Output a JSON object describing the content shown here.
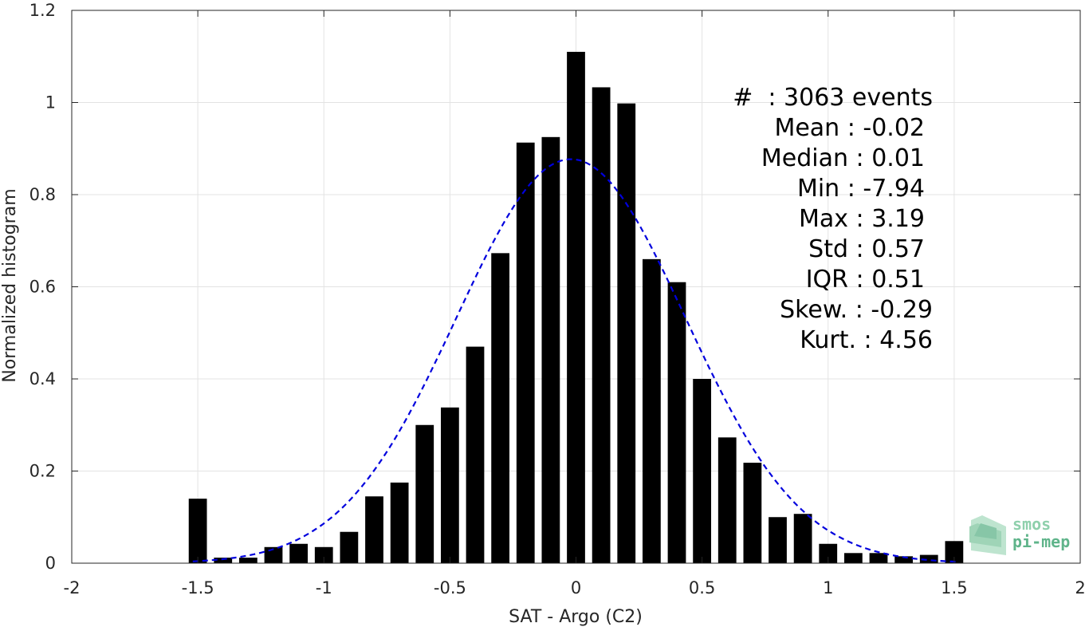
{
  "chart_data": {
    "type": "bar",
    "xlabel": "SAT - Argo (C2)",
    "ylabel": "Normalized histogram",
    "xlim": [
      -2,
      2
    ],
    "ylim": [
      0,
      1.2
    ],
    "xticks": [
      -2,
      -1.5,
      -1,
      -0.5,
      0,
      0.5,
      1,
      1.5,
      2
    ],
    "xtick_labels": [
      "-2",
      "-1.5",
      "-1",
      "-0.5",
      "0",
      "0.5",
      "1",
      "1.5",
      "2"
    ],
    "yticks": [
      0,
      0.2,
      0.4,
      0.6,
      0.8,
      1,
      1.2
    ],
    "ytick_labels": [
      "0",
      "0.2",
      "0.4",
      "0.6",
      "0.8",
      "1",
      "1.2"
    ],
    "grid": true,
    "bar_color": "#000000",
    "bars": {
      "x": [
        -1.5,
        -1.4,
        -1.3,
        -1.2,
        -1.1,
        -1.0,
        -0.9,
        -0.8,
        -0.7,
        -0.6,
        -0.5,
        -0.4,
        -0.3,
        -0.2,
        -0.1,
        0.0,
        0.1,
        0.2,
        0.3,
        0.4,
        0.5,
        0.6,
        0.7,
        0.8,
        0.9,
        1.0,
        1.1,
        1.2,
        1.3,
        1.4,
        1.5
      ],
      "values": [
        0.14,
        0.012,
        0.012,
        0.035,
        0.042,
        0.035,
        0.068,
        0.145,
        0.175,
        0.3,
        0.338,
        0.47,
        0.673,
        0.913,
        0.925,
        1.11,
        1.033,
        0.998,
        0.66,
        0.61,
        0.4,
        0.273,
        0.218,
        0.1,
        0.107,
        0.042,
        0.022,
        0.022,
        0.015,
        0.018,
        0.048
      ]
    },
    "fit": {
      "style": "dashed",
      "color": "#0000dd",
      "mean": -0.02,
      "std": 0.455,
      "peak": 0.877,
      "range": [
        -1.52,
        1.52
      ]
    }
  },
  "stats": [
    {
      "label": "#  : 3063 events"
    },
    {
      "label": "Mean : -0.02"
    },
    {
      "label": "Median : 0.01"
    },
    {
      "label": "Min : -7.94"
    },
    {
      "label": "Max : 3.19"
    },
    {
      "label": "Std : 0.57"
    },
    {
      "label": "IQR : 0.51"
    },
    {
      "label": "Skew. : -0.29"
    },
    {
      "label": "Kurt. : 4.56"
    }
  ],
  "logo": {
    "line1": "smos",
    "line2": "pi-mep",
    "color": "#5fb48a"
  }
}
